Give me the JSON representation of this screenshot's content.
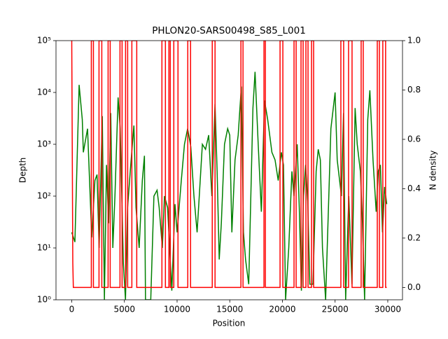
{
  "chart_data": {
    "type": "line",
    "title": "PHLON20-SARS00498_S85_L001",
    "xlabel": "Position",
    "ylabel": "Depth",
    "y2label": "N density",
    "xlim": [
      -1495,
      31398
    ],
    "xticks": [
      0,
      5000,
      10000,
      15000,
      20000,
      25000,
      30000
    ],
    "ylim": [
      1,
      100000
    ],
    "yscale": "log",
    "yticks": [
      {
        "value": 1,
        "label": "10⁰"
      },
      {
        "value": 10,
        "label": "10¹"
      },
      {
        "value": 100,
        "label": "10²"
      },
      {
        "value": 1000,
        "label": "10³"
      },
      {
        "value": 10000,
        "label": "10⁴"
      },
      {
        "value": 100000,
        "label": "10⁵"
      }
    ],
    "y2lim": [
      -0.05,
      1.0
    ],
    "y2ticks": [
      {
        "value": 0,
        "label": "0.0"
      },
      0.2,
      0.4,
      0.6,
      0.8,
      {
        "value": 1,
        "label": "1.0"
      }
    ],
    "ylabel_color": "green",
    "y2label_color": "red",
    "series": [
      {
        "color": "green",
        "axis": "y",
        "x": [
          0,
          300,
          700,
          1000,
          1100,
          1500,
          1900,
          2200,
          2400,
          2600,
          2900,
          3100,
          3300,
          3500,
          3700,
          3900,
          4100,
          4400,
          4600,
          4900,
          5100,
          5300,
          5600,
          5900,
          6100,
          6400,
          6700,
          6900,
          7000,
          7500,
          7800,
          8100,
          8300,
          8600,
          8800,
          9100,
          9500,
          9800,
          10000,
          10400,
          10700,
          11000,
          11300,
          11600,
          11900,
          12400,
          12700,
          13000,
          13300,
          13600,
          13800,
          14000,
          14200,
          14500,
          14800,
          15000,
          15200,
          15500,
          15800,
          16100,
          16300,
          16500,
          16800,
          17200,
          17400,
          17700,
          18000,
          18300,
          18600,
          19000,
          19300,
          19600,
          19900,
          20100,
          20300,
          20600,
          20900,
          21100,
          21400,
          21600,
          21800,
          22000,
          22200,
          22400,
          22600,
          22900,
          23200,
          23400,
          23600,
          23800,
          24100,
          24600,
          25000,
          25200,
          25600,
          25800,
          26000,
          26300,
          26600,
          26900,
          27100,
          27400,
          27600,
          27800,
          28100,
          28300,
          28600,
          28900,
          29100,
          29300,
          29500,
          29700,
          29903
        ],
        "values": [
          20,
          13,
          14000,
          3000,
          700,
          2000,
          16,
          200,
          260,
          10,
          3500,
          1,
          400,
          30,
          4000,
          10,
          100,
          8000,
          2000,
          5,
          1,
          60,
          400,
          2300,
          60,
          10,
          200,
          600,
          1,
          1,
          100,
          130,
          60,
          10,
          100,
          60,
          1.5,
          70,
          20,
          200,
          1000,
          2000,
          900,
          100,
          20,
          1000,
          800,
          1500,
          100,
          6000,
          300,
          6,
          30,
          1000,
          2000,
          1500,
          20,
          500,
          1500,
          13000,
          20,
          6,
          2,
          5000,
          25000,
          1000,
          50,
          7000,
          3000,
          700,
          500,
          200,
          700,
          400,
          1,
          10,
          300,
          100,
          1000,
          60,
          1.5,
          100,
          400,
          80,
          2,
          2,
          300,
          800,
          500,
          10,
          1,
          2000,
          10000,
          500,
          100,
          4000,
          1,
          100,
          2,
          5000,
          1000,
          300,
          30,
          1,
          3000,
          11000,
          500,
          50,
          300,
          400,
          20,
          150,
          70
        ]
      },
      {
        "color": "red",
        "axis": "y2",
        "x": [
          0,
          100,
          150,
          1858,
          1858,
          2057,
          2057,
          2588,
          2588,
          2853,
          2853,
          3451,
          3451,
          3650,
          3650,
          4579,
          4579,
          4778,
          4778,
          5110,
          5110,
          5309,
          5309,
          5707,
          5707,
          6171,
          6171,
          8560,
          8560,
          8892,
          8892,
          9224,
          9224,
          9356,
          9356,
          9688,
          9688,
          10086,
          10086,
          11015,
          11015,
          11280,
          11280,
          13338,
          13338,
          13603,
          13603,
          16059,
          16059,
          16258,
          16258,
          18248,
          18248,
          18381,
          18381,
          19774,
          19774,
          20040,
          20040,
          21101,
          21101,
          21301,
          21301,
          21765,
          21765,
          21964,
          21964,
          22230,
          22230,
          22429,
          22429,
          22761,
          22761,
          22960,
          22960,
          25547,
          25547,
          25813,
          25813,
          26277,
          26277,
          26609,
          26609,
          27472,
          27472,
          27671,
          27671,
          29005,
          29005,
          29204,
          29204,
          29529,
          29529,
          29794,
          29794,
          29903
        ],
        "values": [
          1,
          0.1,
          0,
          0,
          1,
          1,
          0,
          0,
          1,
          1,
          0,
          0,
          1,
          1,
          0,
          0,
          1,
          1,
          0,
          0,
          1,
          1,
          0,
          0,
          1,
          1,
          0,
          0,
          1,
          1,
          0,
          0,
          1,
          1,
          0,
          0,
          1,
          1,
          0,
          0,
          1,
          1,
          0,
          0,
          1,
          1,
          0,
          0,
          1,
          1,
          0,
          0,
          1,
          1,
          0,
          0,
          1,
          1,
          0,
          0,
          1,
          1,
          0,
          0,
          1,
          1,
          0,
          0,
          1,
          1,
          0,
          0,
          1,
          1,
          0,
          0,
          1,
          1,
          0,
          0,
          1,
          1,
          0,
          0,
          1,
          1,
          0,
          0,
          1,
          1,
          0,
          0,
          1,
          1,
          0,
          0
        ]
      }
    ]
  }
}
